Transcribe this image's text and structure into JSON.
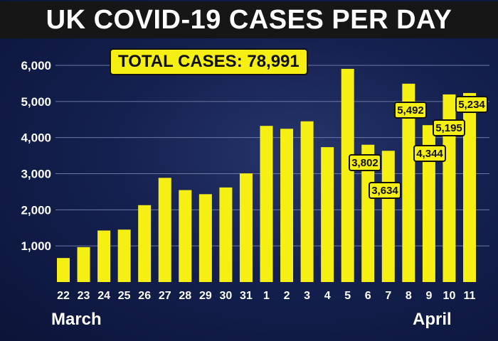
{
  "title": "UK COVID-19 CASES PER DAY",
  "total_label": "TOTAL CASES:  78,991",
  "months": {
    "march": "March",
    "april": "April"
  },
  "colors": {
    "bar": "#f6ef14",
    "background": "#14204f",
    "title_band": "#161616"
  },
  "chart_data": {
    "type": "bar",
    "title": "UK COVID-19 CASES PER DAY",
    "categories": [
      "22",
      "23",
      "24",
      "25",
      "26",
      "27",
      "28",
      "29",
      "30",
      "31",
      "1",
      "2",
      "3",
      "4",
      "5",
      "6",
      "7",
      "8",
      "9",
      "10",
      "11"
    ],
    "values": [
      665,
      967,
      1427,
      1452,
      2129,
      2885,
      2546,
      2433,
      2619,
      3009,
      4324,
      4244,
      4450,
      3735,
      5903,
      3802,
      3634,
      5492,
      4344,
      5195,
      5234
    ],
    "data_labels": [
      {
        "category": "6",
        "text": "3,802"
      },
      {
        "category": "7",
        "text": "3,634"
      },
      {
        "category": "8",
        "text": "5,492"
      },
      {
        "category": "9",
        "text": "4,344"
      },
      {
        "category": "10",
        "text": "5,195"
      },
      {
        "category": "11",
        "text": "5,234"
      }
    ],
    "yticks": [
      "1,000",
      "2,000",
      "3,000",
      "4,000",
      "5,000",
      "6,000"
    ],
    "ylim": [
      0,
      6000
    ],
    "grid": true,
    "legend": "none"
  }
}
